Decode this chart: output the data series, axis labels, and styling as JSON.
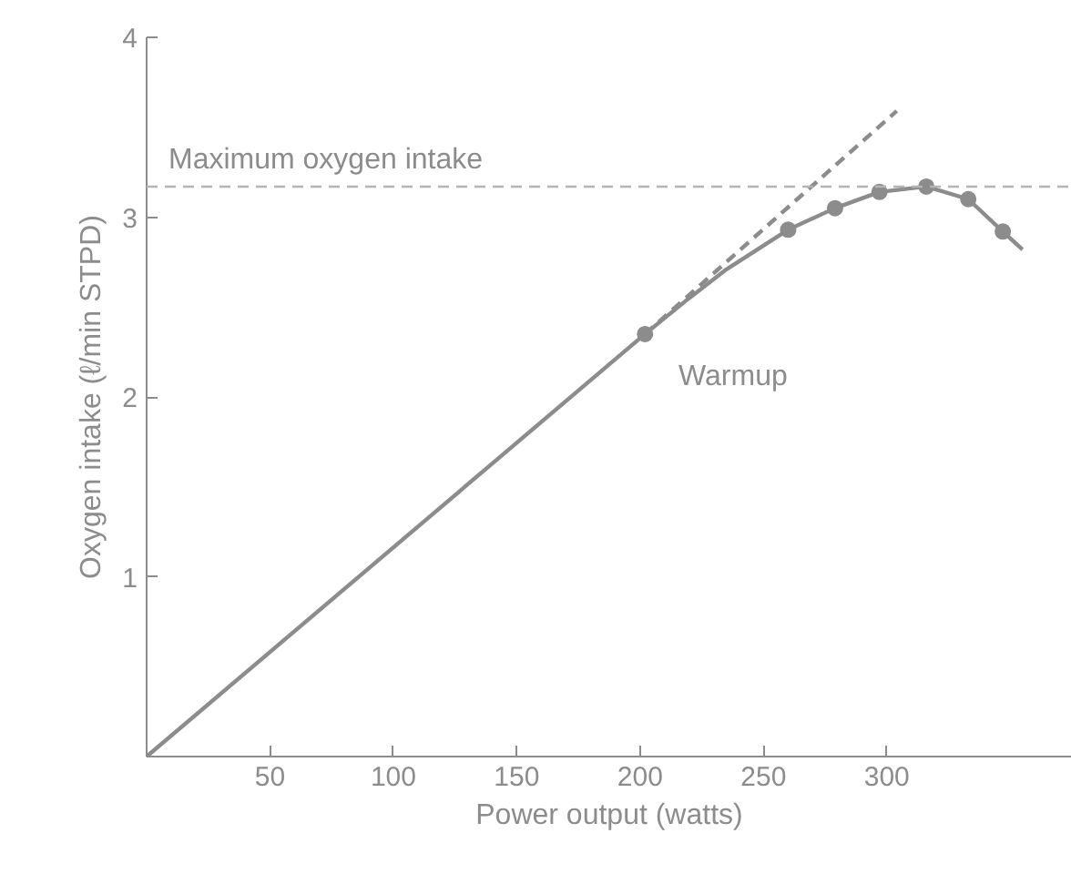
{
  "chart_data": {
    "type": "line",
    "xlabel": "Power output (watts)",
    "ylabel": "Oxygen intake (ℓ/min STPD)",
    "xlim": [
      0,
      375
    ],
    "xticks": [
      50,
      100,
      150,
      200,
      250,
      300
    ],
    "ylim": [
      0,
      4
    ],
    "yticks": [
      1,
      2,
      3,
      4
    ],
    "grid": false,
    "series": [
      {
        "color": "#8c8c8c",
        "marker": "none",
        "line_style": "solid",
        "x": [
          0,
          202,
          219,
          235,
          260,
          279,
          297,
          316,
          333,
          347,
          355
        ],
        "values": [
          0,
          2.35,
          2.54,
          2.71,
          2.93,
          3.05,
          3.14,
          3.17,
          3.1,
          2.92,
          2.82
        ]
      },
      {
        "type": "scatter",
        "color": "#8c8c8c",
        "marker": "circle",
        "x": [
          202,
          260,
          279,
          297,
          316,
          333,
          347
        ],
        "values": [
          2.35,
          2.93,
          3.05,
          3.14,
          3.17,
          3.1,
          2.92
        ]
      },
      {
        "type": "line",
        "color": "#8c8c8c",
        "marker": "none",
        "line_style": "dashed",
        "x": [
          202,
          304
        ],
        "values": [
          2.35,
          3.59
        ]
      }
    ],
    "ref_lines": [
      {
        "axis": "y",
        "value": 3.17,
        "label": "Maximum oxygen intake",
        "color": "#b4b4b4",
        "line_style": "dashed"
      }
    ],
    "annotations": [
      "Warmup"
    ]
  }
}
